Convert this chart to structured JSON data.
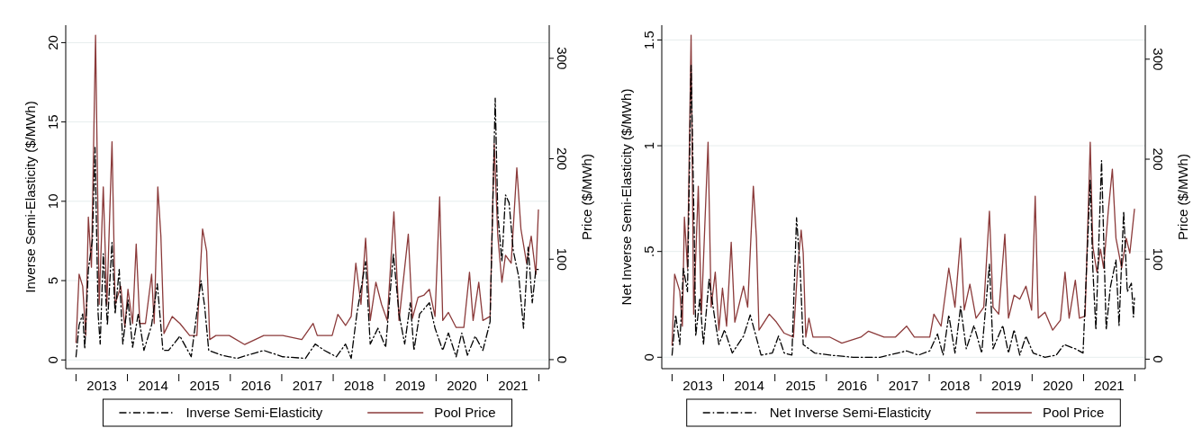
{
  "chart_data": [
    {
      "type": "line",
      "ylabel": "Inverse Semi-Elasticity ($/MWh)",
      "y2label": "Price ($/MWh)",
      "xlim": [
        2012.8,
        2022.2
      ],
      "ylim": [
        -0.55,
        21.1
      ],
      "y2lim": [
        -9,
        333
      ],
      "xticks": [
        {
          "value": 2013,
          "label": null
        },
        {
          "value": 2013.5,
          "label": "2013"
        },
        {
          "value": 2014,
          "label": null
        },
        {
          "value": 2014.5,
          "label": "2014"
        },
        {
          "value": 2015,
          "label": null
        },
        {
          "value": 2015.5,
          "label": "2015"
        },
        {
          "value": 2016,
          "label": null
        },
        {
          "value": 2016.5,
          "label": "2016"
        },
        {
          "value": 2017,
          "label": null
        },
        {
          "value": 2017.5,
          "label": "2017"
        },
        {
          "value": 2018,
          "label": null
        },
        {
          "value": 2018.5,
          "label": "2018"
        },
        {
          "value": 2019,
          "label": null
        },
        {
          "value": 2019.5,
          "label": "2019"
        },
        {
          "value": 2020,
          "label": null
        },
        {
          "value": 2020.5,
          "label": "2020"
        },
        {
          "value": 2021,
          "label": null
        },
        {
          "value": 2021.5,
          "label": "2021"
        },
        {
          "value": 2022,
          "label": null
        }
      ],
      "yticks": [
        0,
        5,
        10,
        15,
        20
      ],
      "y2ticks": [
        0,
        100,
        200,
        300
      ],
      "grid": "y",
      "legend": "bottom",
      "series": [
        {
          "name": "Inverse Semi-Elasticity",
          "color": "#000000",
          "line_style": "dashed",
          "x": [
            2013.0,
            2013.06,
            2013.13,
            2013.17,
            2013.24,
            2013.32,
            2013.37,
            2013.43,
            2013.47,
            2013.53,
            2013.61,
            2013.7,
            2013.76,
            2013.84,
            2013.91,
            2014.01,
            2014.1,
            2014.21,
            2014.32,
            2014.47,
            2014.58,
            2014.69,
            2014.8,
            2015.02,
            2015.24,
            2015.43,
            2015.5,
            2015.58,
            2015.83,
            2016.13,
            2016.65,
            2017.02,
            2017.46,
            2017.65,
            2017.83,
            2018.06,
            2018.24,
            2018.35,
            2018.46,
            2018.63,
            2018.72,
            2018.87,
            2019.02,
            2019.17,
            2019.28,
            2019.39,
            2019.5,
            2019.57,
            2019.68,
            2019.87,
            2019.98,
            2020.13,
            2020.24,
            2020.39,
            2020.5,
            2020.61,
            2020.76,
            2020.91,
            2021.05,
            2021.15,
            2021.2,
            2021.28,
            2021.35,
            2021.42,
            2021.5,
            2021.61,
            2021.7,
            2021.79,
            2021.87,
            2021.94,
            2021.99
          ],
          "values": [
            0.2,
            2.2,
            2.9,
            0.7,
            5.7,
            7.6,
            13.4,
            2.9,
            1.0,
            6.7,
            2.2,
            7.4,
            2.9,
            5.7,
            1.0,
            3.8,
            0.8,
            2.9,
            0.6,
            2.2,
            4.8,
            0.6,
            0.6,
            1.5,
            0.2,
            5.0,
            3.4,
            0.6,
            0.3,
            0.1,
            0.6,
            0.2,
            0.1,
            1.0,
            0.6,
            0.2,
            1.0,
            0.1,
            2.9,
            6.2,
            1.0,
            2.0,
            0.8,
            6.7,
            2.9,
            1.0,
            3.6,
            0.6,
            2.9,
            3.6,
            2.0,
            0.6,
            1.7,
            0.2,
            1.7,
            0.3,
            1.5,
            0.6,
            2.4,
            16.5,
            9.2,
            6.2,
            10.4,
            9.9,
            6.9,
            5.2,
            2.0,
            7.1,
            3.6,
            5.7,
            5.7
          ]
        },
        {
          "name": "Pool Price",
          "color": "#8b3a3a",
          "line_style": "solid",
          "axis": "y2",
          "x": [
            2013.0,
            2013.06,
            2013.13,
            2013.19,
            2013.24,
            2013.3,
            2013.38,
            2013.45,
            2013.53,
            2013.6,
            2013.7,
            2013.76,
            2013.87,
            2013.95,
            2014.01,
            2014.1,
            2014.17,
            2014.24,
            2014.35,
            2014.47,
            2014.52,
            2014.59,
            2014.65,
            2014.71,
            2014.87,
            2015.02,
            2015.21,
            2015.35,
            2015.46,
            2015.54,
            2015.6,
            2015.72,
            2015.98,
            2016.28,
            2016.65,
            2017.02,
            2017.39,
            2017.61,
            2017.69,
            2017.98,
            2018.09,
            2018.24,
            2018.35,
            2018.44,
            2018.54,
            2018.63,
            2018.72,
            2018.83,
            2018.94,
            2019.05,
            2019.18,
            2019.28,
            2019.46,
            2019.54,
            2019.65,
            2019.76,
            2019.87,
            2019.98,
            2020.07,
            2020.13,
            2020.24,
            2020.39,
            2020.54,
            2020.65,
            2020.72,
            2020.83,
            2020.91,
            2021.05,
            2021.13,
            2021.2,
            2021.28,
            2021.35,
            2021.46,
            2021.57,
            2021.65,
            2021.76,
            2021.85,
            2021.94,
            2021.99
          ],
          "values": [
            17,
            85,
            73,
            24,
            142,
            92,
            323,
            55,
            172,
            55,
            217,
            55,
            73,
            32,
            70,
            36,
            115,
            36,
            36,
            85,
            36,
            172,
            123,
            26,
            43,
            36,
            24,
            24,
            130,
            108,
            20,
            24,
            24,
            15,
            24,
            24,
            20,
            36,
            24,
            24,
            45,
            34,
            43,
            96,
            55,
            121,
            39,
            77,
            55,
            39,
            147,
            39,
            125,
            41,
            62,
            64,
            70,
            43,
            162,
            39,
            47,
            32,
            32,
            87,
            39,
            77,
            39,
            43,
            215,
            123,
            77,
            104,
            96,
            191,
            130,
            96,
            123,
            85,
            149
          ]
        }
      ]
    },
    {
      "type": "line",
      "ylabel": "Net Inverse Semi-Elasticity ($/MWh)",
      "y2label": "Price ($/MWh)",
      "xlim": [
        2012.8,
        2022.2
      ],
      "ylim": [
        -0.054,
        1.57
      ],
      "y2lim": [
        -9.5,
        334
      ],
      "xticks": [
        {
          "value": 2013,
          "label": null
        },
        {
          "value": 2013.5,
          "label": "2013"
        },
        {
          "value": 2014,
          "label": null
        },
        {
          "value": 2014.5,
          "label": "2014"
        },
        {
          "value": 2015,
          "label": null
        },
        {
          "value": 2015.5,
          "label": "2015"
        },
        {
          "value": 2016,
          "label": null
        },
        {
          "value": 2016.5,
          "label": "2016"
        },
        {
          "value": 2017,
          "label": null
        },
        {
          "value": 2017.5,
          "label": "2017"
        },
        {
          "value": 2018,
          "label": null
        },
        {
          "value": 2018.5,
          "label": "2018"
        },
        {
          "value": 2019,
          "label": null
        },
        {
          "value": 2019.5,
          "label": "2019"
        },
        {
          "value": 2020,
          "label": null
        },
        {
          "value": 2020.5,
          "label": "2020"
        },
        {
          "value": 2021,
          "label": null
        },
        {
          "value": 2021.5,
          "label": "2021"
        },
        {
          "value": 2022,
          "label": null
        }
      ],
      "yticks": [
        0,
        {
          "value": 0.5,
          "label": ".5"
        },
        1,
        1.5
      ],
      "y2ticks": [
        0,
        100,
        200,
        300
      ],
      "grid": "y",
      "legend": "bottom",
      "series": [
        {
          "name": "Net Inverse Semi-Elasticity",
          "color": "#000000",
          "line_style": "dashed",
          "x": [
            2013.0,
            2013.07,
            2013.15,
            2013.22,
            2013.3,
            2013.37,
            2013.43,
            2013.46,
            2013.54,
            2013.61,
            2013.72,
            2013.82,
            2013.91,
            2014.02,
            2014.17,
            2014.39,
            2014.52,
            2014.62,
            2014.73,
            2014.95,
            2015.07,
            2015.18,
            2015.33,
            2015.42,
            2015.49,
            2015.55,
            2015.77,
            2016.07,
            2016.52,
            2017.04,
            2017.56,
            2017.79,
            2018.01,
            2018.16,
            2018.27,
            2018.38,
            2018.5,
            2018.61,
            2018.72,
            2018.87,
            2019.02,
            2019.17,
            2019.24,
            2019.43,
            2019.54,
            2019.65,
            2019.76,
            2019.88,
            2020.02,
            2020.25,
            2020.47,
            2020.62,
            2020.84,
            2020.99,
            2021.13,
            2021.18,
            2021.24,
            2021.35,
            2021.44,
            2021.52,
            2021.63,
            2021.69,
            2021.78,
            2021.85,
            2021.93,
            2021.97,
            2021.99
          ],
          "values": [
            0.01,
            0.2,
            0.06,
            0.42,
            0.31,
            1.38,
            0.6,
            0.1,
            0.28,
            0.06,
            0.37,
            0.2,
            0.06,
            0.13,
            0.02,
            0.1,
            0.2,
            0.11,
            0.01,
            0.02,
            0.1,
            0.02,
            0.01,
            0.66,
            0.42,
            0.06,
            0.02,
            0.01,
            0,
            0,
            0.03,
            0.01,
            0.03,
            0.11,
            0.01,
            0.2,
            0.02,
            0.24,
            0.04,
            0.15,
            0.02,
            0.44,
            0.04,
            0.15,
            0.02,
            0.13,
            0.01,
            0.1,
            0.02,
            0,
            0.01,
            0.06,
            0.04,
            0.02,
            0.84,
            0.42,
            0.13,
            0.93,
            0.13,
            0.33,
            0.46,
            0.15,
            0.69,
            0.31,
            0.35,
            0.19,
            0.28
          ]
        },
        {
          "name": "Pool Price",
          "color": "#8b3a3a",
          "line_style": "solid",
          "axis": "y2",
          "x": [
            2013.0,
            2013.05,
            2013.15,
            2013.2,
            2013.24,
            2013.3,
            2013.37,
            2013.42,
            2013.51,
            2013.57,
            2013.7,
            2013.76,
            2013.84,
            2013.91,
            2013.98,
            2014.06,
            2014.15,
            2014.22,
            2014.39,
            2014.47,
            2014.58,
            2014.64,
            2014.69,
            2014.89,
            2015.03,
            2015.18,
            2015.36,
            2015.44,
            2015.51,
            2015.55,
            2015.6,
            2015.66,
            2015.74,
            2016.07,
            2016.3,
            2016.67,
            2016.82,
            2017.12,
            2017.34,
            2017.56,
            2017.71,
            2018.01,
            2018.09,
            2018.23,
            2018.38,
            2018.5,
            2018.61,
            2018.68,
            2018.79,
            2018.91,
            2019.06,
            2019.17,
            2019.24,
            2019.35,
            2019.47,
            2019.54,
            2019.65,
            2019.76,
            2019.88,
            2019.99,
            2020.06,
            2020.12,
            2020.25,
            2020.4,
            2020.55,
            2020.64,
            2020.72,
            2020.84,
            2020.92,
            2021.03,
            2021.13,
            2021.18,
            2021.26,
            2021.33,
            2021.39,
            2021.48,
            2021.56,
            2021.63,
            2021.74,
            2021.83,
            2021.9,
            2021.99
          ],
          "values": [
            14,
            85,
            68,
            33,
            142,
            91,
            324,
            45,
            173,
            45,
            217,
            52,
            87,
            29,
            71,
            33,
            117,
            37,
            73,
            52,
            173,
            121,
            29,
            45,
            37,
            26,
            22,
            91,
            129,
            106,
            22,
            41,
            22,
            22,
            16,
            22,
            28,
            22,
            22,
            33,
            22,
            22,
            45,
            33,
            91,
            52,
            121,
            49,
            75,
            41,
            52,
            148,
            52,
            45,
            125,
            41,
            64,
            60,
            73,
            49,
            163,
            41,
            47,
            29,
            39,
            87,
            41,
            79,
            41,
            43,
            217,
            113,
            87,
            110,
            91,
            148,
            190,
            121,
            91,
            121,
            106,
            150
          ]
        }
      ]
    }
  ]
}
